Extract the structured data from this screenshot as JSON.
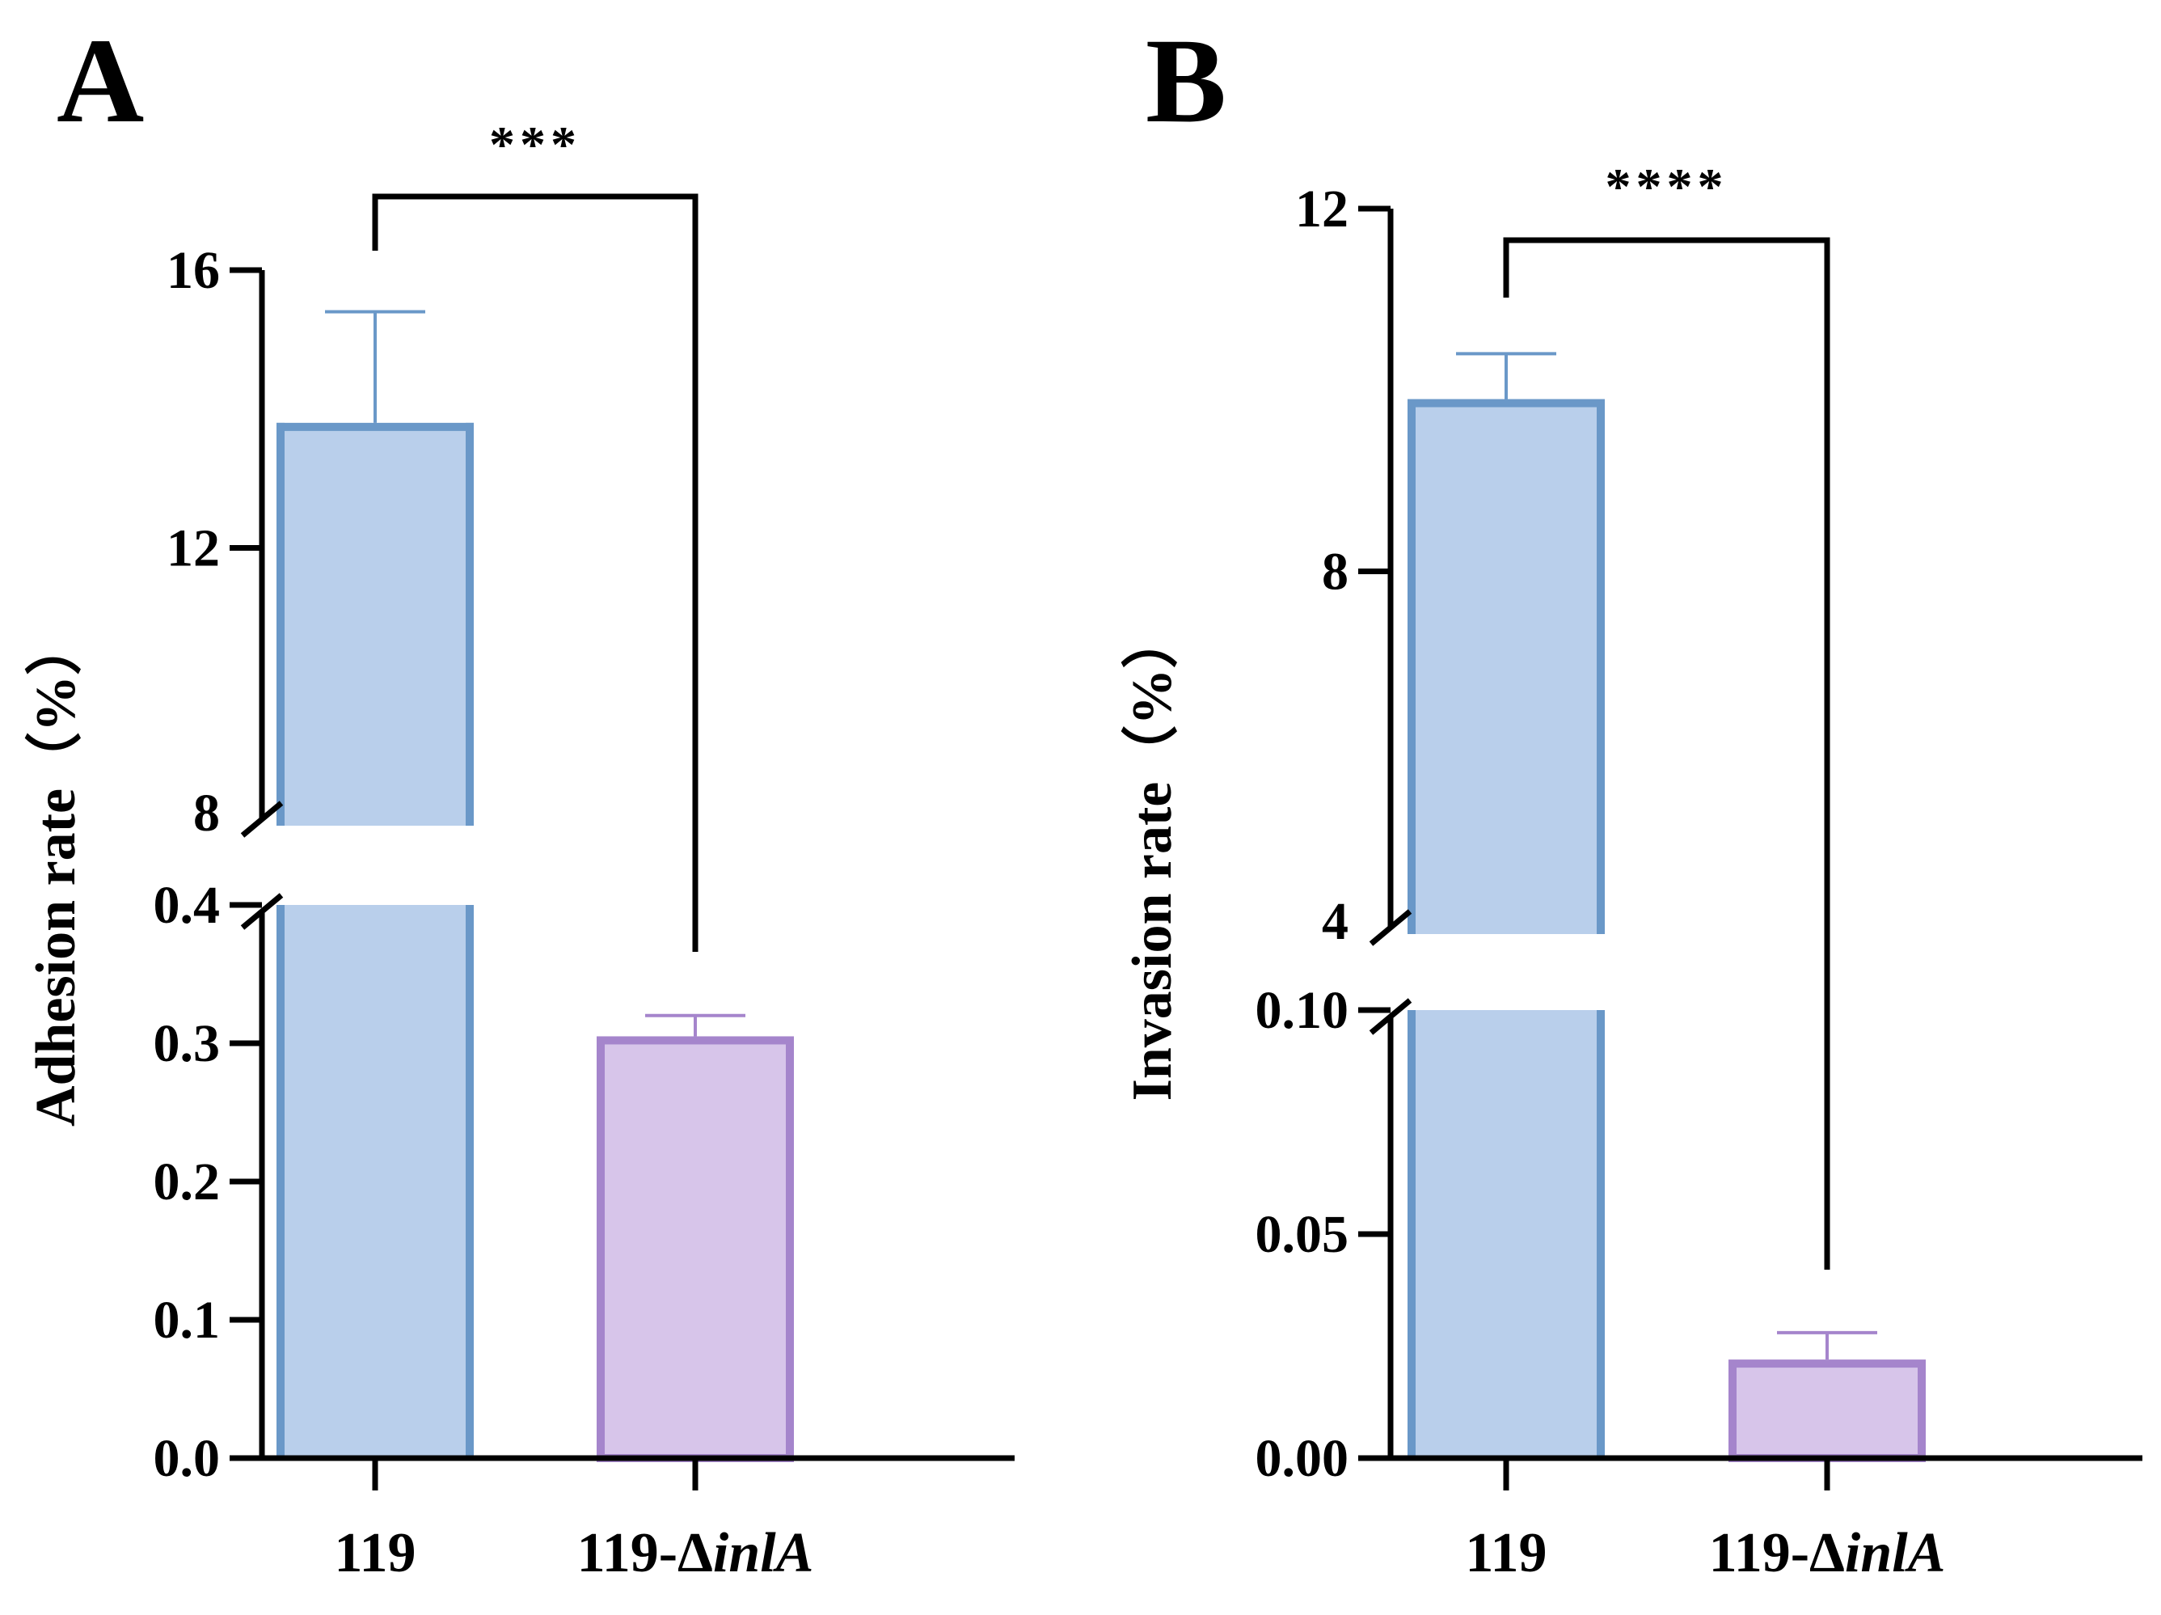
{
  "chart_data": [
    {
      "panel": "A",
      "type": "bar",
      "ylabel": "Adhesion rate（%）",
      "categories": [
        {
          "pre": "119",
          "ital": "",
          "label": "119"
        },
        {
          "pre": "119-Δ",
          "ital": "inlA",
          "label": "119-ΔinlA"
        }
      ],
      "values": [
        13.8,
        0.305
      ],
      "errors": [
        1.6,
        0.015
      ],
      "axis_break": {
        "lower_max": 0.4,
        "upper_min": 8
      },
      "lower_ticks": [
        "0.0",
        "0.1",
        "0.2",
        "0.3",
        "0.4"
      ],
      "upper_ticks": [
        "8",
        "12",
        "16"
      ],
      "lower_range": [
        0,
        0.4
      ],
      "upper_range": [
        8,
        16
      ],
      "significance": "***",
      "grid": false,
      "legend": "none"
    },
    {
      "panel": "B",
      "type": "bar",
      "ylabel": "Invasion rate（%）",
      "categories": [
        {
          "pre": "119",
          "ital": "",
          "label": "119"
        },
        {
          "pre": "119-Δ",
          "ital": "inlA",
          "label": "119-ΔinlA"
        }
      ],
      "values": [
        9.9,
        0.022
      ],
      "errors": [
        0.5,
        0.006
      ],
      "axis_break": {
        "lower_max": 0.1,
        "upper_min": 4
      },
      "lower_ticks": [
        "0.00",
        "0.05",
        "0.10"
      ],
      "upper_ticks": [
        "4",
        "8",
        "12"
      ],
      "lower_range": [
        0,
        0.1
      ],
      "upper_range": [
        4,
        12
      ],
      "significance": "****",
      "grid": false,
      "legend": "none"
    }
  ],
  "colors": {
    "bar1_fill": "#b9cfeb",
    "bar1_edge": "#6a98c8",
    "bar2_fill": "#d7c5ea",
    "bar2_edge": "#a585cc",
    "axis": "#000000"
  }
}
